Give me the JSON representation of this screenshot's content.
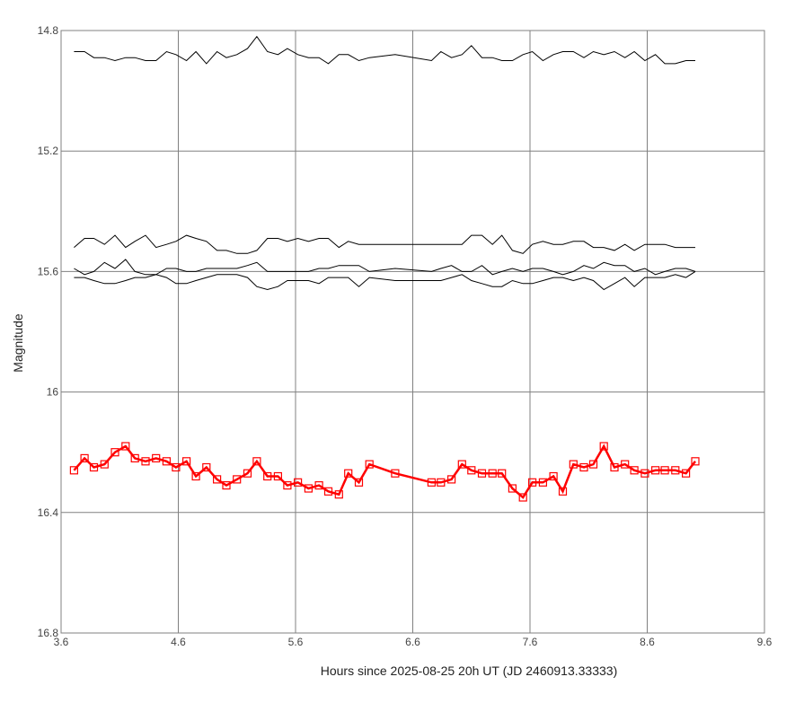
{
  "chart_data": {
    "type": "line",
    "xlabel": "Hours since 2025-08-25 20h UT (JD 2460913.33333)",
    "ylabel": "Magnitude",
    "xlim": [
      3.6,
      9.6
    ],
    "ylim": [
      14.8,
      16.8
    ],
    "y_inverted": true,
    "x_ticks": [
      "3.6",
      "4.6",
      "5.6",
      "6.6",
      "7.6",
      "8.6",
      "9.6"
    ],
    "y_ticks": [
      "14.8",
      "15.2",
      "15.6",
      "16",
      "16.4",
      "16.8"
    ],
    "grid": true,
    "colors": {
      "target": "#ff0000",
      "comparison": "#000000",
      "grid": "#808080"
    },
    "series": [
      {
        "role": "target",
        "x": [
          3.71,
          3.8,
          3.88,
          3.97,
          4.06,
          4.15,
          4.23,
          4.32,
          4.41,
          4.5,
          4.58,
          4.67,
          4.75,
          4.84,
          4.93,
          5.01,
          5.1,
          5.19,
          5.27,
          5.36,
          5.45,
          5.53,
          5.62,
          5.71,
          5.8,
          5.88,
          5.97,
          6.05,
          6.14,
          6.23,
          6.45,
          6.76,
          6.84,
          6.93,
          7.02,
          7.1,
          7.19,
          7.28,
          7.36,
          7.45,
          7.54,
          7.62,
          7.71,
          7.8,
          7.88,
          7.97,
          8.06,
          8.14,
          8.23,
          8.32,
          8.41,
          8.49,
          8.58,
          8.67,
          8.75,
          8.84,
          8.93,
          9.01
        ],
        "y": [
          16.26,
          16.22,
          16.25,
          16.24,
          16.2,
          16.18,
          16.22,
          16.23,
          16.22,
          16.23,
          16.25,
          16.23,
          16.28,
          16.25,
          16.29,
          16.31,
          16.29,
          16.27,
          16.23,
          16.28,
          16.28,
          16.31,
          16.3,
          16.32,
          16.31,
          16.33,
          16.34,
          16.27,
          16.3,
          16.24,
          16.27,
          16.3,
          16.3,
          16.29,
          16.24,
          16.26,
          16.27,
          16.27,
          16.27,
          16.32,
          16.35,
          16.3,
          16.3,
          16.28,
          16.33,
          16.24,
          16.25,
          16.24,
          16.18,
          16.25,
          16.24,
          16.26,
          16.27,
          16.26,
          16.26,
          16.26,
          16.27,
          16.23
        ]
      },
      {
        "role": "comparison",
        "x": [
          3.71,
          3.8,
          3.88,
          3.97,
          4.06,
          4.15,
          4.23,
          4.32,
          4.41,
          4.5,
          4.58,
          4.67,
          4.75,
          4.84,
          4.93,
          5.01,
          5.1,
          5.19,
          5.27,
          5.36,
          5.45,
          5.53,
          5.62,
          5.71,
          5.8,
          5.88,
          5.97,
          6.05,
          6.14,
          6.23,
          6.45,
          6.76,
          6.84,
          6.93,
          7.02,
          7.1,
          7.19,
          7.28,
          7.36,
          7.45,
          7.54,
          7.62,
          7.71,
          7.8,
          7.88,
          7.97,
          8.06,
          8.14,
          8.23,
          8.32,
          8.41,
          8.49,
          8.58,
          8.67,
          8.75,
          8.84,
          8.93,
          9.01
        ],
        "y": [
          14.87,
          14.87,
          14.89,
          14.89,
          14.9,
          14.89,
          14.89,
          14.9,
          14.9,
          14.87,
          14.88,
          14.9,
          14.87,
          14.91,
          14.87,
          14.89,
          14.88,
          14.86,
          14.82,
          14.87,
          14.88,
          14.86,
          14.88,
          14.89,
          14.89,
          14.91,
          14.88,
          14.88,
          14.9,
          14.89,
          14.88,
          14.9,
          14.87,
          14.89,
          14.88,
          14.85,
          14.89,
          14.89,
          14.9,
          14.9,
          14.88,
          14.87,
          14.9,
          14.88,
          14.87,
          14.87,
          14.89,
          14.87,
          14.88,
          14.87,
          14.89,
          14.87,
          14.9,
          14.88,
          14.91,
          14.91,
          14.9,
          14.9
        ]
      },
      {
        "role": "comparison",
        "x": [
          3.71,
          3.8,
          3.88,
          3.97,
          4.06,
          4.15,
          4.23,
          4.32,
          4.41,
          4.5,
          4.58,
          4.67,
          4.75,
          4.84,
          4.93,
          5.01,
          5.1,
          5.19,
          5.27,
          5.36,
          5.45,
          5.53,
          5.62,
          5.71,
          5.8,
          5.88,
          5.97,
          6.05,
          6.14,
          6.23,
          6.45,
          6.76,
          6.84,
          6.93,
          7.02,
          7.1,
          7.19,
          7.28,
          7.36,
          7.45,
          7.54,
          7.62,
          7.71,
          7.8,
          7.88,
          7.97,
          8.06,
          8.14,
          8.23,
          8.32,
          8.41,
          8.49,
          8.58,
          8.67,
          8.75,
          8.84,
          8.93,
          9.01
        ],
        "y": [
          15.52,
          15.49,
          15.49,
          15.51,
          15.48,
          15.52,
          15.5,
          15.48,
          15.52,
          15.51,
          15.5,
          15.48,
          15.49,
          15.5,
          15.53,
          15.53,
          15.54,
          15.54,
          15.53,
          15.49,
          15.49,
          15.5,
          15.49,
          15.5,
          15.49,
          15.49,
          15.52,
          15.5,
          15.51,
          15.51,
          15.51,
          15.51,
          15.51,
          15.51,
          15.51,
          15.48,
          15.48,
          15.51,
          15.48,
          15.53,
          15.54,
          15.51,
          15.5,
          15.51,
          15.51,
          15.5,
          15.5,
          15.52,
          15.52,
          15.53,
          15.51,
          15.53,
          15.51,
          15.51,
          15.51,
          15.52,
          15.52,
          15.52
        ]
      },
      {
        "role": "comparison",
        "x": [
          3.71,
          3.8,
          3.88,
          3.97,
          4.06,
          4.15,
          4.23,
          4.32,
          4.41,
          4.5,
          4.58,
          4.67,
          4.75,
          4.84,
          4.93,
          5.01,
          5.1,
          5.19,
          5.27,
          5.36,
          5.45,
          5.53,
          5.62,
          5.71,
          5.8,
          5.88,
          5.97,
          6.05,
          6.14,
          6.23,
          6.45,
          6.76,
          6.84,
          6.93,
          7.02,
          7.1,
          7.19,
          7.28,
          7.36,
          7.45,
          7.54,
          7.62,
          7.71,
          7.8,
          7.88,
          7.97,
          8.06,
          8.14,
          8.23,
          8.32,
          8.41,
          8.49,
          8.58,
          8.67,
          8.75,
          8.84,
          8.93,
          9.01
        ],
        "y": [
          15.59,
          15.61,
          15.6,
          15.57,
          15.59,
          15.56,
          15.6,
          15.61,
          15.61,
          15.59,
          15.59,
          15.6,
          15.6,
          15.59,
          15.59,
          15.59,
          15.59,
          15.58,
          15.57,
          15.6,
          15.6,
          15.6,
          15.6,
          15.6,
          15.59,
          15.59,
          15.58,
          15.58,
          15.58,
          15.6,
          15.59,
          15.6,
          15.59,
          15.58,
          15.6,
          15.6,
          15.58,
          15.61,
          15.6,
          15.59,
          15.6,
          15.59,
          15.59,
          15.6,
          15.61,
          15.6,
          15.58,
          15.59,
          15.57,
          15.58,
          15.58,
          15.6,
          15.59,
          15.61,
          15.6,
          15.59,
          15.59,
          15.6
        ]
      },
      {
        "role": "comparison",
        "x": [
          3.71,
          3.8,
          3.88,
          3.97,
          4.06,
          4.15,
          4.23,
          4.32,
          4.41,
          4.5,
          4.58,
          4.67,
          4.75,
          4.84,
          4.93,
          5.01,
          5.1,
          5.19,
          5.27,
          5.36,
          5.45,
          5.53,
          5.62,
          5.71,
          5.8,
          5.88,
          5.97,
          6.05,
          6.14,
          6.23,
          6.45,
          6.76,
          6.84,
          6.93,
          7.02,
          7.1,
          7.19,
          7.28,
          7.36,
          7.45,
          7.54,
          7.62,
          7.71,
          7.8,
          7.88,
          7.97,
          8.06,
          8.14,
          8.23,
          8.32,
          8.41,
          8.49,
          8.58,
          8.67,
          8.75,
          8.84,
          8.93,
          9.01
        ],
        "y": [
          15.62,
          15.62,
          15.63,
          15.64,
          15.64,
          15.63,
          15.62,
          15.62,
          15.61,
          15.62,
          15.64,
          15.64,
          15.63,
          15.62,
          15.61,
          15.61,
          15.61,
          15.62,
          15.65,
          15.66,
          15.65,
          15.63,
          15.63,
          15.63,
          15.64,
          15.62,
          15.62,
          15.62,
          15.65,
          15.62,
          15.63,
          15.63,
          15.63,
          15.62,
          15.61,
          15.63,
          15.64,
          15.65,
          15.65,
          15.63,
          15.64,
          15.64,
          15.63,
          15.62,
          15.62,
          15.63,
          15.62,
          15.63,
          15.66,
          15.64,
          15.62,
          15.65,
          15.62,
          15.62,
          15.62,
          15.61,
          15.62,
          15.6
        ]
      }
    ]
  }
}
